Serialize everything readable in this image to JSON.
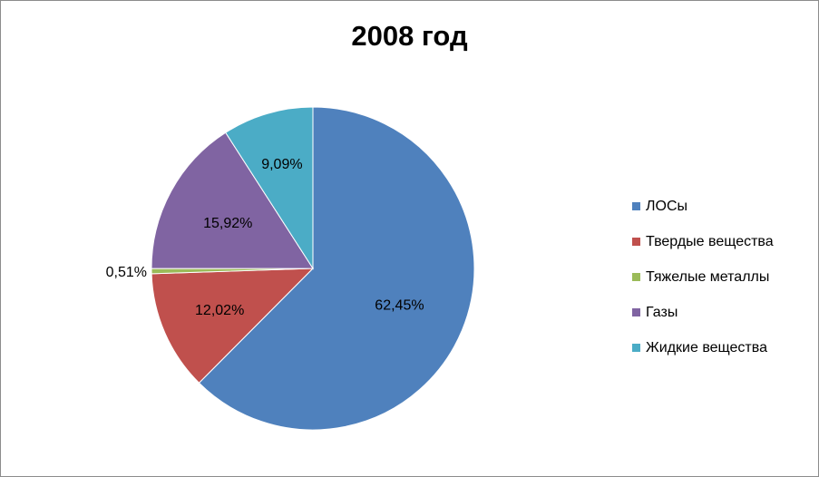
{
  "chart_data": {
    "type": "pie",
    "title": "2008 год",
    "series": [
      {
        "name": "ЛОСы",
        "value": 62.45,
        "label": "62,45%",
        "color": "#4F81BD"
      },
      {
        "name": "Твердые вещества",
        "value": 12.02,
        "label": "12,02%",
        "color": "#C0504D"
      },
      {
        "name": "Тяжелые металлы",
        "value": 0.51,
        "label": "0,51%",
        "color": "#9BBB59"
      },
      {
        "name": "Газы",
        "value": 15.92,
        "label": "15,92%",
        "color": "#8064A2"
      },
      {
        "name": "Жидкие вещества",
        "value": 9.09,
        "label": "9,09%",
        "color": "#4BACC6"
      }
    ],
    "legend": {
      "position": "right"
    }
  }
}
